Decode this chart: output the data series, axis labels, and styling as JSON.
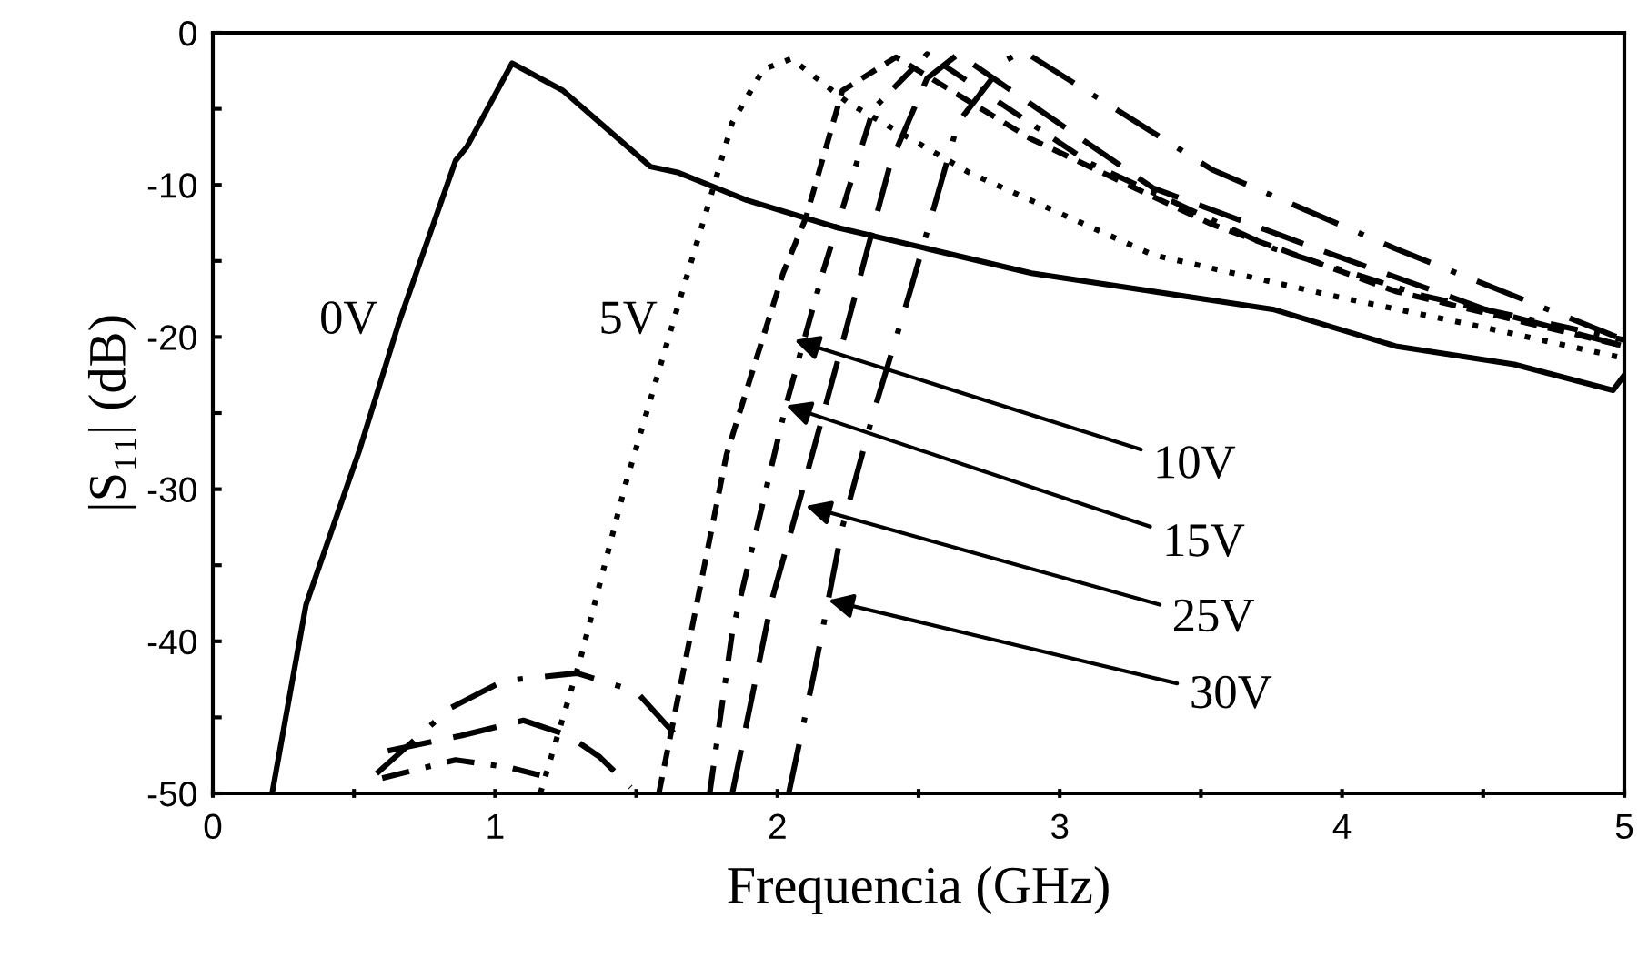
{
  "chart_data": {
    "type": "line",
    "xlabel": "Frequencia (GHz)",
    "ylabel": "|S₁₁| (dB)",
    "xlim": [
      0,
      5
    ],
    "ylim": [
      -50,
      0
    ],
    "xticks": [
      0,
      {
        "value": 0.5,
        "label": null
      },
      1,
      {
        "value": 1.5,
        "label": null
      },
      2,
      {
        "value": 2.5,
        "label": null
      },
      3,
      {
        "value": 3.5,
        "label": null
      },
      4,
      {
        "value": 4.5,
        "label": null
      },
      5
    ],
    "yticks": [
      -50,
      {
        "value": -45,
        "label": null
      },
      -40,
      {
        "value": -35,
        "label": null
      },
      -30,
      {
        "value": -25,
        "label": null
      },
      -20,
      {
        "value": -15,
        "label": null
      },
      -10,
      {
        "value": -5,
        "label": null
      },
      0
    ],
    "grid": false,
    "legend": false,
    "marker": "none",
    "series": [
      {
        "color": "#000000",
        "line_style": "solid",
        "x": [
          0.21,
          0.33,
          0.52,
          0.66,
          0.86,
          0.9,
          1.06,
          1.24,
          1.55,
          1.65,
          1.89,
          2.21,
          2.9,
          3.76,
          4.19,
          4.61,
          4.96,
          5.0
        ],
        "values": [
          -50,
          -37.6,
          -27.4,
          -19,
          -8.4,
          -7.5,
          -2.0,
          -3.8,
          -8.8,
          -9.2,
          -11.0,
          -12.8,
          -15.8,
          -18.2,
          -20.6,
          -21.8,
          -23.5,
          -22.5
        ]
      },
      {
        "color": "#000000",
        "line_style": "dotted",
        "x": [
          1.16,
          1.3,
          1.46,
          1.65,
          1.76,
          1.84,
          1.95,
          2.05,
          2.25,
          2.68,
          3.33,
          3.97,
          4.51,
          5.0
        ],
        "values": [
          -50,
          -41.3,
          -29.8,
          -17.8,
          -11.0,
          -5.9,
          -2.4,
          -1.7,
          -4.6,
          -9.2,
          -14.6,
          -17.3,
          -19.4,
          -21.4
        ]
      },
      {
        "color": "#000000",
        "line_style": "dashed",
        "x": [
          1.58,
          1.69,
          1.82,
          2.02,
          2.1,
          2.23,
          2.42,
          2.9,
          3.54,
          4.19,
          5.0
        ],
        "values": [
          -50,
          -39.8,
          -27.7,
          -15.8,
          -12.2,
          -3.8,
          -1.6,
          -7.0,
          -12.6,
          -17.0,
          -20.6
        ]
      },
      {
        "color": "#000000",
        "line_style": "dashdot",
        "x": [
          0.6,
          0.86,
          1.05,
          1.2,
          1.3,
          1.76,
          1.84,
          2.03,
          2.16,
          2.34,
          2.53,
          3.11,
          3.76,
          4.29,
          5.0
        ],
        "values": [
          -49.0,
          -47.8,
          -48.3,
          -49.0,
          null,
          -50,
          -39.4,
          -24.5,
          -15.8,
          -5.0,
          -1.4,
          -8.6,
          -14.2,
          -17.3,
          -20.2
        ]
      },
      {
        "color": "#000000",
        "line_style": "longdash",
        "x": [
          0.62,
          0.88,
          1.1,
          1.26,
          1.37,
          1.48,
          1.6,
          1.84,
          1.98,
          2.1,
          2.21,
          2.4,
          2.53,
          2.64,
          3.33,
          3.97,
          4.51,
          5.0
        ],
        "values": [
          -47.2,
          -46.2,
          -45.2,
          -46.2,
          -47.6,
          -49.6,
          null,
          -50,
          -37.3,
          -29.3,
          -21.8,
          -8.6,
          -3.0,
          -1.4,
          -10.2,
          -14.6,
          -18.2,
          -20.6
        ]
      },
      {
        "color": "#000000",
        "line_style": "longdashdot",
        "x": [
          0.58,
          0.84,
          1.03,
          1.29,
          1.5,
          1.67,
          1.8,
          2.04,
          2.13,
          2.18,
          2.23,
          2.34,
          2.47,
          2.64,
          2.81,
          2.87,
          3.54,
          4.19,
          4.61,
          5.0
        ],
        "values": [
          -48.7,
          -44.4,
          -42.6,
          -42.1,
          -43.3,
          -46.8,
          null,
          -50,
          -42.1,
          -37.3,
          -32.5,
          -25.0,
          -17.0,
          -5.9,
          -1.8,
          -1.2,
          -9.0,
          -14.2,
          -17.3,
          -20.2
        ]
      }
    ],
    "annotations": [
      {
        "text": "0V",
        "x": 0.66,
        "y": -19
      },
      {
        "text": "5V",
        "x": 1.65,
        "y": -19
      },
      {
        "text": "10V",
        "x": 2.06,
        "y": -20.2
      },
      {
        "text": "15V",
        "x": 2.03,
        "y": -24.5
      },
      {
        "text": "25V",
        "x": 2.1,
        "y": -31.1
      },
      {
        "text": "30V",
        "x": 2.18,
        "y": -37.3
      }
    ]
  }
}
